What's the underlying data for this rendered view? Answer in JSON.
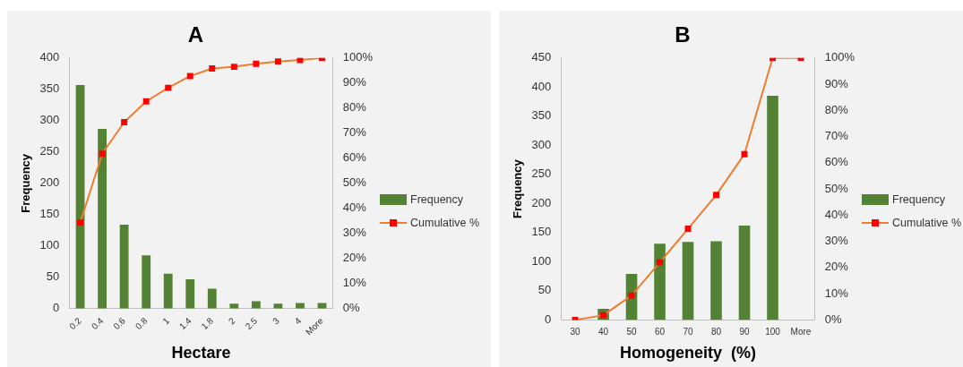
{
  "chart_data": [
    {
      "type": "bar",
      "title": "A",
      "xlabel": "Hectare",
      "ylabel": "Frequency",
      "categories": [
        "0.2",
        "0.4",
        "0.6",
        "0.8",
        "1",
        "1.4",
        "1.8",
        "2",
        "2.5",
        "3",
        "4",
        "More"
      ],
      "series": [
        {
          "name": "Frequency",
          "color": "#548235",
          "values": [
            357,
            287,
            134,
            85,
            56,
            47,
            32,
            8,
            12,
            8,
            9,
            9
          ]
        },
        {
          "name": "Cumulative %",
          "type": "line",
          "axis": "y2",
          "color": "#ed7d31",
          "colors": [
            "#ff0000",
            "#ff0000",
            "#ff0000",
            "#ff0000",
            "#ff0000",
            "#ff0000",
            "#ff0000",
            "#ff0000",
            "#ff0000",
            "#ff0000",
            "#ff0000",
            "#ff0000"
          ],
          "marker": "square",
          "values": [
            34.3,
            61.8,
            74.4,
            82.7,
            88.1,
            92.8,
            95.8,
            96.5,
            97.7,
            98.6,
            99.2,
            100
          ]
        }
      ],
      "ylim": [
        0,
        400
      ],
      "yticks": [
        0,
        50,
        100,
        150,
        200,
        250,
        300,
        350,
        400
      ],
      "y2lim": [
        0,
        100
      ],
      "y2ticks": [
        {
          "value": 0,
          "label": "0%"
        },
        {
          "value": 10,
          "label": "10%"
        },
        {
          "value": 20,
          "label": "20%"
        },
        {
          "value": 30,
          "label": "30%"
        },
        {
          "value": 40,
          "label": "40%"
        },
        {
          "value": 50,
          "label": "50%"
        },
        {
          "value": 60,
          "label": "60%"
        },
        {
          "value": 70,
          "label": "70%"
        },
        {
          "value": 80,
          "label": "80%"
        },
        {
          "value": 90,
          "label": "90%"
        },
        {
          "value": 100,
          "label": "100%"
        }
      ],
      "grid": false,
      "legend": "right"
    },
    {
      "type": "bar",
      "title": "B",
      "xlabel": "Homogeneity  (%)",
      "ylabel": "Frequency",
      "categories": [
        "30",
        "40",
        "50",
        "60",
        "70",
        "80",
        "90",
        "100",
        "More"
      ],
      "series": [
        {
          "name": "Frequency",
          "color": "#548235",
          "values": [
            0,
            19,
            79,
            131,
            134,
            135,
            162,
            385,
            0
          ]
        },
        {
          "name": "Cumulative %",
          "type": "line",
          "axis": "y2",
          "color": "#ed7d31",
          "colors": [
            "#ff0000",
            "#ff0000",
            "#ff0000",
            "#ff0000",
            "#ff0000",
            "#ff0000",
            "#ff0000",
            "#ff0000",
            "#ff0000"
          ],
          "marker": "square",
          "values": [
            0,
            1.8,
            9.3,
            22,
            34.8,
            47.7,
            63.3,
            100,
            100
          ]
        }
      ],
      "ylim": [
        0,
        450
      ],
      "yticks": [
        0,
        50,
        100,
        150,
        200,
        250,
        300,
        350,
        400,
        450
      ],
      "y2lim": [
        0,
        100
      ],
      "y2ticks": [
        {
          "value": 0,
          "label": "0%"
        },
        {
          "value": 10,
          "label": "10%"
        },
        {
          "value": 20,
          "label": "20%"
        },
        {
          "value": 30,
          "label": "30%"
        },
        {
          "value": 40,
          "label": "40%"
        },
        {
          "value": 50,
          "label": "50%"
        },
        {
          "value": 60,
          "label": "60%"
        },
        {
          "value": 70,
          "label": "70%"
        },
        {
          "value": 80,
          "label": "80%"
        },
        {
          "value": 90,
          "label": "90%"
        },
        {
          "value": 100,
          "label": "100%"
        }
      ],
      "grid": false,
      "legend": "right"
    }
  ]
}
